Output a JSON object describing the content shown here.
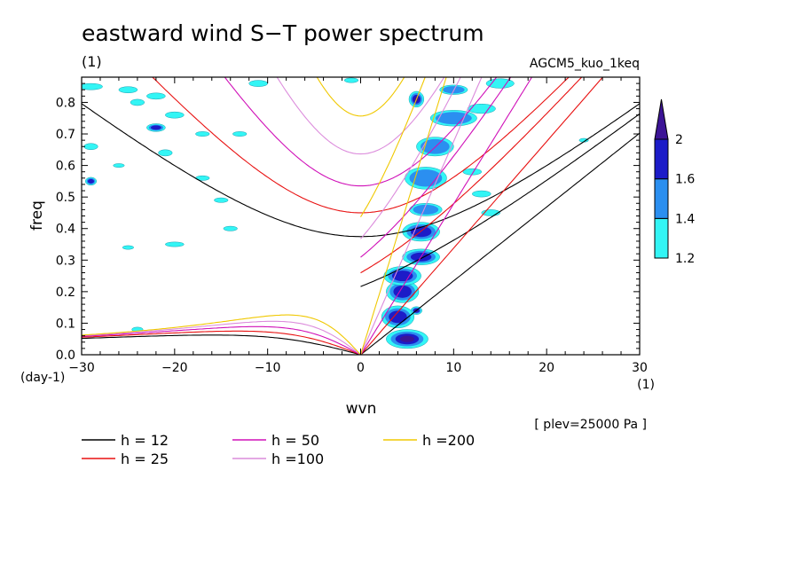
{
  "chart_data": {
    "type": "heatmap",
    "title": "eastward wind S−T power spectrum",
    "subtitle_left": "(1)",
    "subtitle_right": "AGCM5_kuo_1keq",
    "xlabel": "wvn",
    "ylabel": "freq",
    "x_unit": "(1)",
    "y_unit": "(day-1)",
    "xlim": [
      -30,
      30
    ],
    "ylim": [
      0,
      0.88
    ],
    "xticks": [
      -30,
      -20,
      -10,
      0,
      10,
      20,
      30
    ],
    "yticks": [
      0.0,
      0.1,
      0.2,
      0.3,
      0.4,
      0.5,
      0.6,
      0.7,
      0.8
    ],
    "xtick_labels": [
      "−30",
      "−20",
      "−10",
      "0",
      "10",
      "20",
      "30"
    ],
    "ytick_labels": [
      "0.0",
      "0.1",
      "0.2",
      "0.3",
      "0.4",
      "0.5",
      "0.6",
      "0.7",
      "0.8"
    ],
    "annotation": "[ plev=25000 Pa ]",
    "colorbar": {
      "levels": [
        1.2,
        1.4,
        1.6,
        2.0
      ],
      "labels": [
        "1.2",
        "1.4",
        "1.6",
        "2"
      ],
      "colors": [
        "#33f5f5",
        "#2b8ff0",
        "#1c1cc8",
        "#3c1496"
      ]
    },
    "dispersion_curves": [
      {
        "label": "h = 12",
        "h": 12,
        "color": "#000000"
      },
      {
        "label": "h = 25",
        "h": 25,
        "color": "#e81010"
      },
      {
        "label": "h = 50",
        "h": 50,
        "color": "#d010b8"
      },
      {
        "label": "h =100",
        "h": 100,
        "color": "#dc8cdc"
      },
      {
        "label": "h =200",
        "h": 200,
        "color": "#f0c800"
      }
    ],
    "contour_blobs": [
      {
        "x": 5.0,
        "y": 0.05,
        "level": 4,
        "w": 4.5,
        "h": 0.06
      },
      {
        "x": 4.0,
        "y": 0.12,
        "level": 3,
        "w": 3.5,
        "h": 0.07
      },
      {
        "x": 4.5,
        "y": 0.2,
        "level": 3,
        "w": 3.5,
        "h": 0.07
      },
      {
        "x": 4.5,
        "y": 0.25,
        "level": 3,
        "w": 4.0,
        "h": 0.06
      },
      {
        "x": 6.5,
        "y": 0.31,
        "level": 3,
        "w": 4.0,
        "h": 0.05
      },
      {
        "x": 6.5,
        "y": 0.39,
        "level": 3,
        "w": 4.0,
        "h": 0.06
      },
      {
        "x": 7.0,
        "y": 0.46,
        "level": 2,
        "w": 3.5,
        "h": 0.04
      },
      {
        "x": 7.0,
        "y": 0.56,
        "level": 2,
        "w": 4.5,
        "h": 0.07
      },
      {
        "x": 8.0,
        "y": 0.66,
        "level": 2,
        "w": 4.0,
        "h": 0.06
      },
      {
        "x": 6.0,
        "y": 0.81,
        "level": 4,
        "w": 1.6,
        "h": 0.05
      },
      {
        "x": 10.0,
        "y": 0.75,
        "level": 2,
        "w": 5.0,
        "h": 0.05
      },
      {
        "x": 13.0,
        "y": 0.78,
        "level": 1,
        "w": 3.0,
        "h": 0.03
      },
      {
        "x": 15.0,
        "y": 0.86,
        "level": 1,
        "w": 3.0,
        "h": 0.03
      },
      {
        "x": 10.0,
        "y": 0.84,
        "level": 2,
        "w": 3.0,
        "h": 0.03
      },
      {
        "x": 12.0,
        "y": 0.58,
        "level": 1,
        "w": 2.0,
        "h": 0.02
      },
      {
        "x": 13.0,
        "y": 0.51,
        "level": 1,
        "w": 2.0,
        "h": 0.02
      },
      {
        "x": 14.0,
        "y": 0.45,
        "level": 1,
        "w": 2.0,
        "h": 0.02
      },
      {
        "x": 6.0,
        "y": 0.14,
        "level": 4,
        "w": 1.2,
        "h": 0.025
      },
      {
        "x": -29.0,
        "y": 0.85,
        "level": 1,
        "w": 2.5,
        "h": 0.02
      },
      {
        "x": -29.0,
        "y": 0.55,
        "level": 3,
        "w": 1.2,
        "h": 0.025
      },
      {
        "x": -29.0,
        "y": 0.66,
        "level": 1,
        "w": 1.5,
        "h": 0.02
      },
      {
        "x": -25.0,
        "y": 0.84,
        "level": 1,
        "w": 2.0,
        "h": 0.02
      },
      {
        "x": -24.0,
        "y": 0.8,
        "level": 1,
        "w": 1.5,
        "h": 0.02
      },
      {
        "x": -22.0,
        "y": 0.82,
        "level": 1,
        "w": 2.0,
        "h": 0.02
      },
      {
        "x": -20.0,
        "y": 0.76,
        "level": 1,
        "w": 2.0,
        "h": 0.02
      },
      {
        "x": -22.0,
        "y": 0.72,
        "level": 3,
        "w": 2.0,
        "h": 0.025
      },
      {
        "x": -21.0,
        "y": 0.64,
        "level": 1,
        "w": 1.5,
        "h": 0.02
      },
      {
        "x": -17.0,
        "y": 0.56,
        "level": 1,
        "w": 1.5,
        "h": 0.015
      },
      {
        "x": -17.0,
        "y": 0.7,
        "level": 1,
        "w": 1.5,
        "h": 0.015
      },
      {
        "x": -20.0,
        "y": 0.35,
        "level": 1,
        "w": 2.0,
        "h": 0.015
      },
      {
        "x": -14.0,
        "y": 0.4,
        "level": 1,
        "w": 1.5,
        "h": 0.015
      },
      {
        "x": -25.0,
        "y": 0.34,
        "level": 1,
        "w": 1.2,
        "h": 0.012
      },
      {
        "x": -15.0,
        "y": 0.49,
        "level": 1,
        "w": 1.5,
        "h": 0.015
      },
      {
        "x": -13.0,
        "y": 0.7,
        "level": 1,
        "w": 1.5,
        "h": 0.015
      },
      {
        "x": -11.0,
        "y": 0.86,
        "level": 1,
        "w": 2.0,
        "h": 0.02
      },
      {
        "x": -26.0,
        "y": 0.6,
        "level": 1,
        "w": 1.2,
        "h": 0.012
      },
      {
        "x": -24.0,
        "y": 0.08,
        "level": 1,
        "w": 1.2,
        "h": 0.015
      },
      {
        "x": -1.0,
        "y": 0.87,
        "level": 1,
        "w": 1.5,
        "h": 0.015
      },
      {
        "x": 24.0,
        "y": 0.68,
        "level": 1,
        "w": 1.0,
        "h": 0.012
      }
    ]
  }
}
